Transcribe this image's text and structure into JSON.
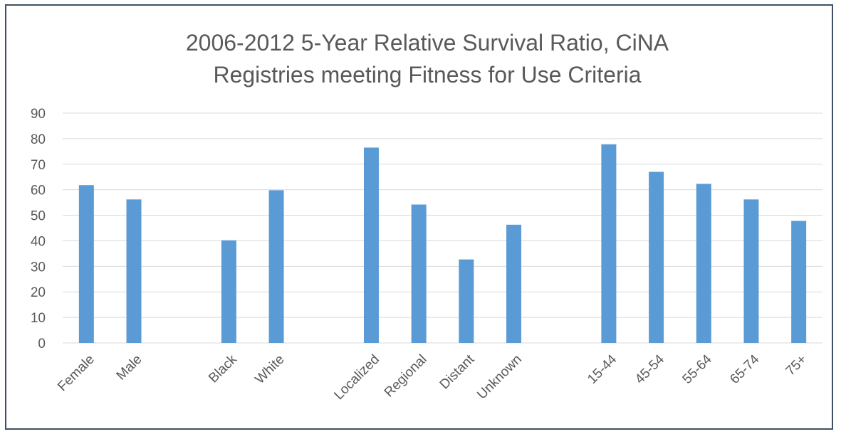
{
  "chart_data": {
    "type": "bar",
    "title_lines": [
      "2006-2012 5-Year Relative Survival Ratio, CiNA",
      "Registries meeting Fitness for Use Criteria"
    ],
    "categories": [
      "Female",
      "Male",
      "",
      "Black",
      "White",
      "",
      "Localized",
      "Regional",
      "Distant",
      "Unknown",
      "",
      "15-44",
      "45-54",
      "55-64",
      "65-74",
      "75+"
    ],
    "values": [
      61.8,
      56.2,
      null,
      40.2,
      59.8,
      null,
      76.5,
      54.2,
      32.7,
      46.3,
      null,
      77.8,
      67.0,
      62.3,
      56.2,
      47.8
    ],
    "yticks": [
      0,
      10,
      20,
      30,
      40,
      50,
      60,
      70,
      80,
      90
    ],
    "ylim": [
      0,
      90
    ],
    "grid": true,
    "legend": "none",
    "bar_color": "#5b9bd5"
  }
}
